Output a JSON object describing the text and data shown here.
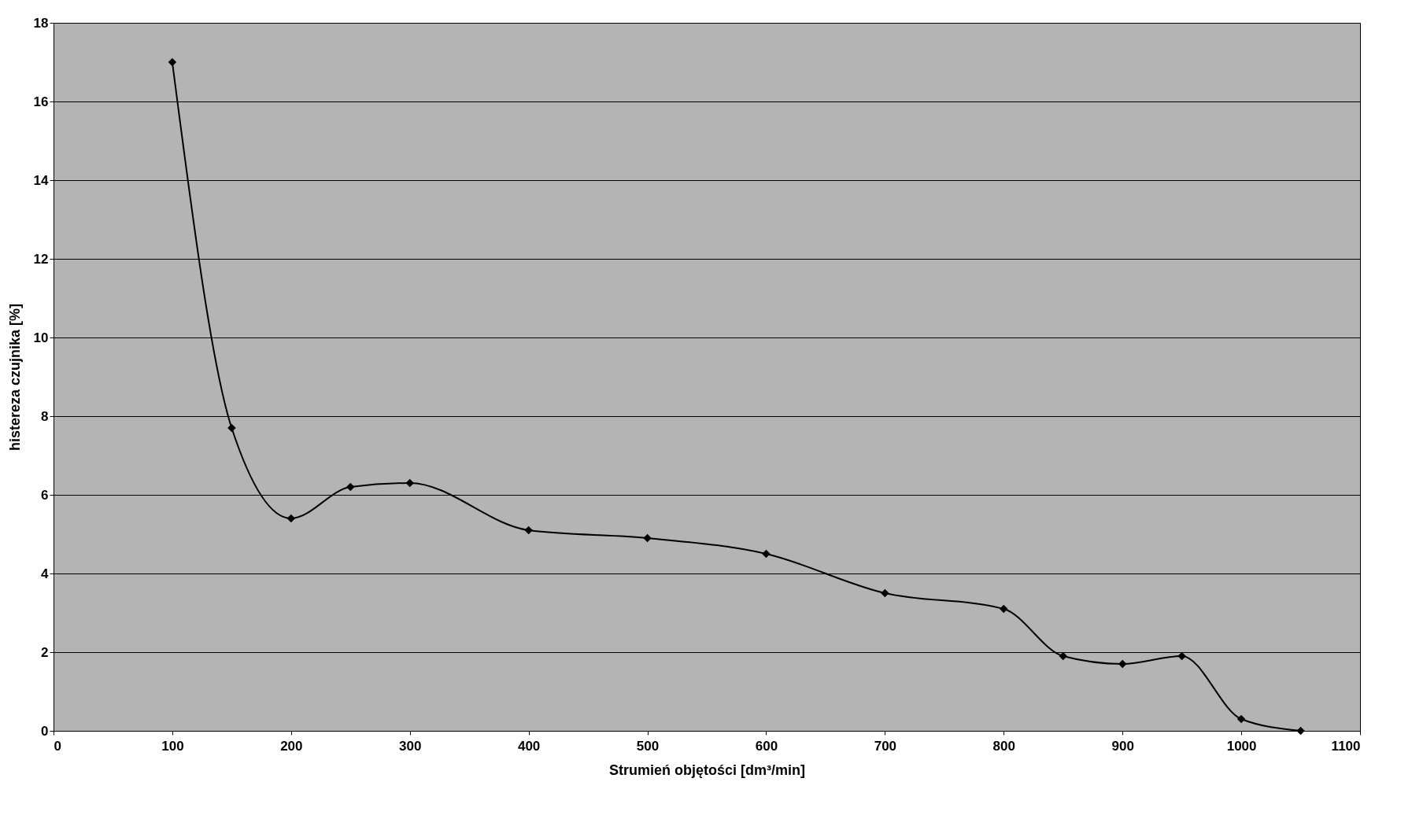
{
  "chart_data": {
    "type": "line",
    "xlabel": "Strumień objętości [dm³/min]",
    "ylabel": "histereza czujnika [%]",
    "x": [
      100,
      150,
      200,
      250,
      300,
      400,
      500,
      600,
      700,
      800,
      850,
      900,
      950,
      1000,
      1050
    ],
    "series": [
      {
        "color": "#000000",
        "values": [
          17.0,
          7.7,
          5.4,
          6.2,
          6.3,
          5.1,
          4.9,
          4.5,
          3.5,
          3.1,
          1.9,
          1.7,
          1.9,
          0.3,
          0.0
        ]
      }
    ],
    "xlim": [
      0,
      1100
    ],
    "xticks": [
      0,
      100,
      200,
      300,
      400,
      500,
      600,
      700,
      800,
      900,
      1000,
      1100
    ],
    "ylim": [
      0,
      18
    ],
    "yticks": [
      0,
      2,
      4,
      6,
      8,
      10,
      12,
      14,
      16,
      18
    ],
    "grid": "y",
    "marker": "diamond",
    "line_style": "solid"
  }
}
